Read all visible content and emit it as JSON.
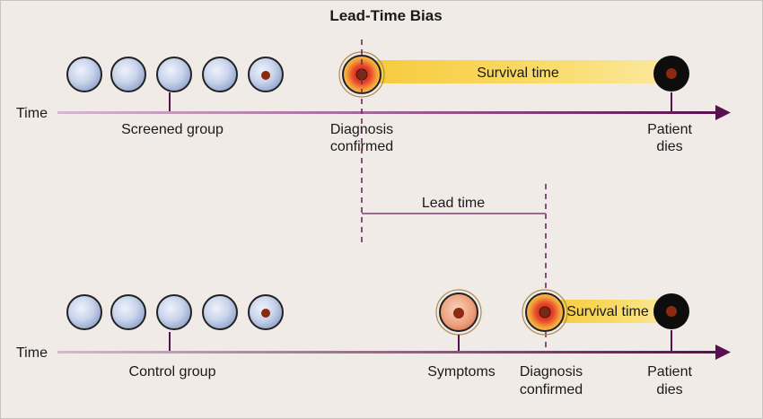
{
  "title": "Lead-Time Bias",
  "screened": {
    "axis_label": "Time",
    "group_label": "Screened group",
    "survival_label": "Survival time",
    "diagnosis_label": [
      "Diagnosis",
      "confirmed"
    ],
    "death_label": [
      "Patient",
      "dies"
    ]
  },
  "lead_time_label": "Lead time",
  "control": {
    "axis_label": "Time",
    "group_label": "Control group",
    "symptoms_label": "Symptoms",
    "survival_label": "Survival time",
    "diagnosis_label": [
      "Diagnosis",
      "confirmed"
    ],
    "death_label": [
      "Patient",
      "dies"
    ]
  },
  "colors": {
    "background": "#f0ebe7",
    "axis_dark": "#5a0f4e",
    "axis_light": "#c9a6c4",
    "cell_fill": "#c7d2ea",
    "nucleus": "#8b2a10",
    "survival_band": "#f8d34a",
    "guide": "#6a2a5e"
  }
}
